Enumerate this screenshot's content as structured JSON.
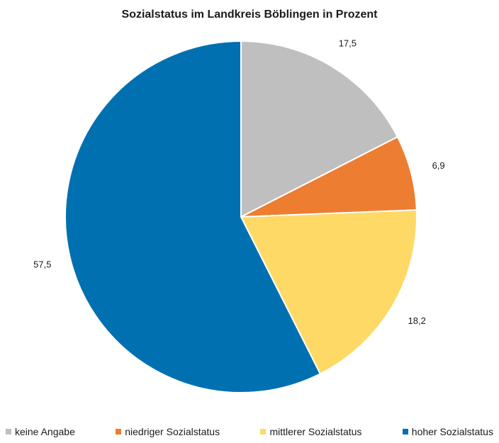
{
  "chart_data": {
    "type": "pie",
    "title": "Sozialstatus im Landkreis Böblingen in Prozent",
    "legend_position": "bottom",
    "start_angle": "12 o'clock, clockwise",
    "slices": [
      {
        "name": "keine Angabe",
        "value": 17.5,
        "label": "17,5",
        "color": "#bfbfbf"
      },
      {
        "name": "niedriger Sozialstatus",
        "value": 6.9,
        "label": "6,9",
        "color": "#ed7d31"
      },
      {
        "name": "mittlerer Sozialstatus",
        "value": 18.2,
        "label": "18,2",
        "color": "#ffd966"
      },
      {
        "name": "hoher Sozialstatus",
        "value": 57.5,
        "label": "57,5",
        "color": "#0070b0"
      }
    ]
  }
}
